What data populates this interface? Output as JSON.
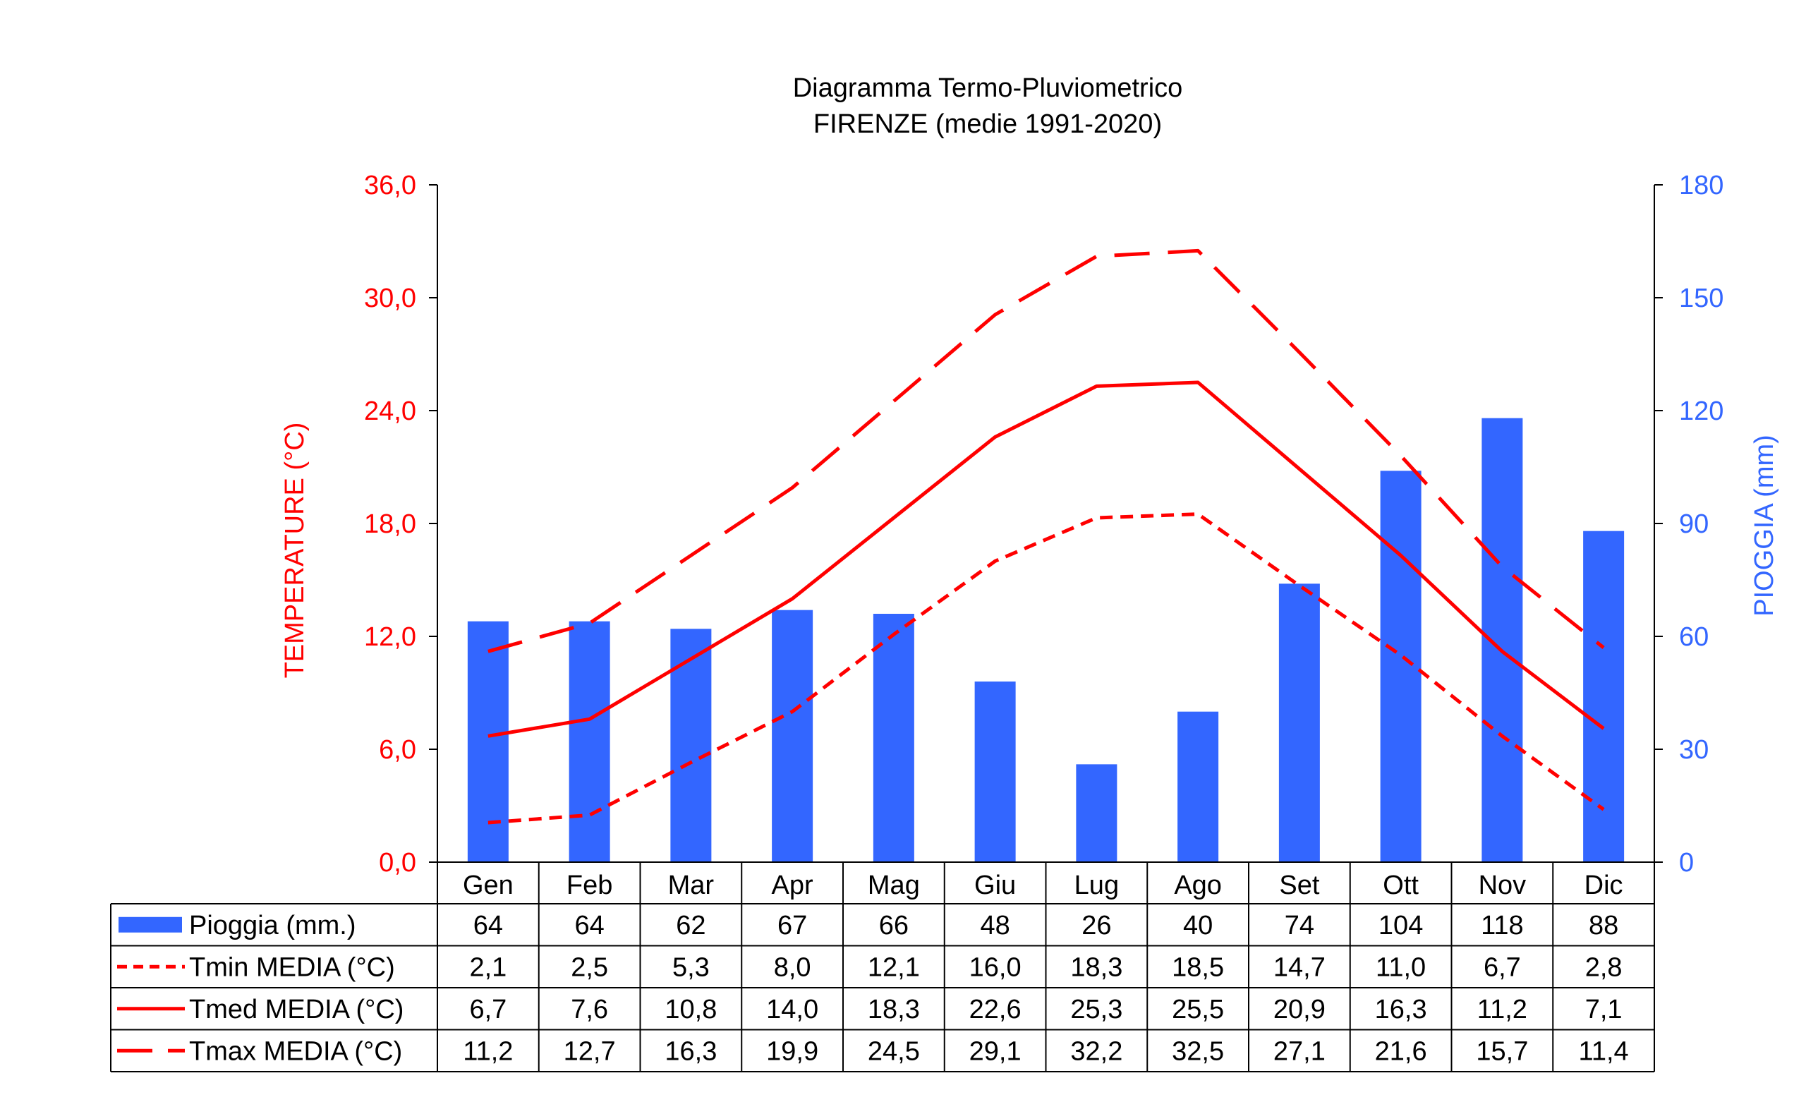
{
  "chart_data": {
    "type": "bar+line",
    "title": "Diagramma Termo-Pluviometrico",
    "subtitle": "FIRENZE (medie 1991-2020)",
    "categories": [
      "Gen",
      "Feb",
      "Mar",
      "Apr",
      "Mag",
      "Giu",
      "Lug",
      "Ago",
      "Set",
      "Ott",
      "Nov",
      "Dic"
    ],
    "y_left": {
      "label": "TEMPERATURE (°C)",
      "range": [
        0,
        36
      ],
      "ticks": [
        "0,0",
        "6,0",
        "12,0",
        "18,0",
        "24,0",
        "30,0",
        "36,0"
      ],
      "tick_values": [
        0,
        6,
        12,
        18,
        24,
        30,
        36
      ],
      "color": "#ff0000"
    },
    "y_right": {
      "label": "PIOGGIA (mm)",
      "range": [
        0,
        180
      ],
      "ticks": [
        "0",
        "30",
        "60",
        "90",
        "120",
        "150",
        "180"
      ],
      "tick_values": [
        0,
        30,
        60,
        90,
        120,
        150,
        180
      ],
      "color": "#3366ff"
    },
    "grid": false,
    "legend": "data-table",
    "series": [
      {
        "name": "Pioggia (mm.)",
        "kind": "bar",
        "axis": "right",
        "color": "#3366ff",
        "values": [
          64,
          64,
          62,
          67,
          66,
          48,
          26,
          40,
          74,
          104,
          118,
          88
        ],
        "labels": [
          "64",
          "64",
          "62",
          "67",
          "66",
          "48",
          "26",
          "40",
          "74",
          "104",
          "118",
          "88"
        ]
      },
      {
        "name": "Tmin MEDIA (°C)",
        "kind": "line",
        "style": "dotted",
        "axis": "left",
        "color": "#ff0000",
        "values": [
          2.1,
          2.5,
          5.3,
          8.0,
          12.1,
          16.0,
          18.3,
          18.5,
          14.7,
          11.0,
          6.7,
          2.8
        ],
        "labels": [
          "2,1",
          "2,5",
          "5,3",
          "8,0",
          "12,1",
          "16,0",
          "18,3",
          "18,5",
          "14,7",
          "11,0",
          "6,7",
          "2,8"
        ]
      },
      {
        "name": "Tmed MEDIA (°C)",
        "kind": "line",
        "style": "solid",
        "axis": "left",
        "color": "#ff0000",
        "values": [
          6.7,
          7.6,
          10.8,
          14.0,
          18.3,
          22.6,
          25.3,
          25.5,
          20.9,
          16.3,
          11.2,
          7.1
        ],
        "labels": [
          "6,7",
          "7,6",
          "10,8",
          "14,0",
          "18,3",
          "22,6",
          "25,3",
          "25,5",
          "20,9",
          "16,3",
          "11,2",
          "7,1"
        ]
      },
      {
        "name": "Tmax MEDIA (°C)",
        "kind": "line",
        "style": "dashed",
        "axis": "left",
        "color": "#ff0000",
        "values": [
          11.2,
          12.7,
          16.3,
          19.9,
          24.5,
          29.1,
          32.2,
          32.5,
          27.1,
          21.6,
          15.7,
          11.4
        ],
        "labels": [
          "11,2",
          "12,7",
          "16,3",
          "19,9",
          "24,5",
          "29,1",
          "32,2",
          "32,5",
          "27,1",
          "21,6",
          "15,7",
          "11,4"
        ]
      }
    ]
  }
}
